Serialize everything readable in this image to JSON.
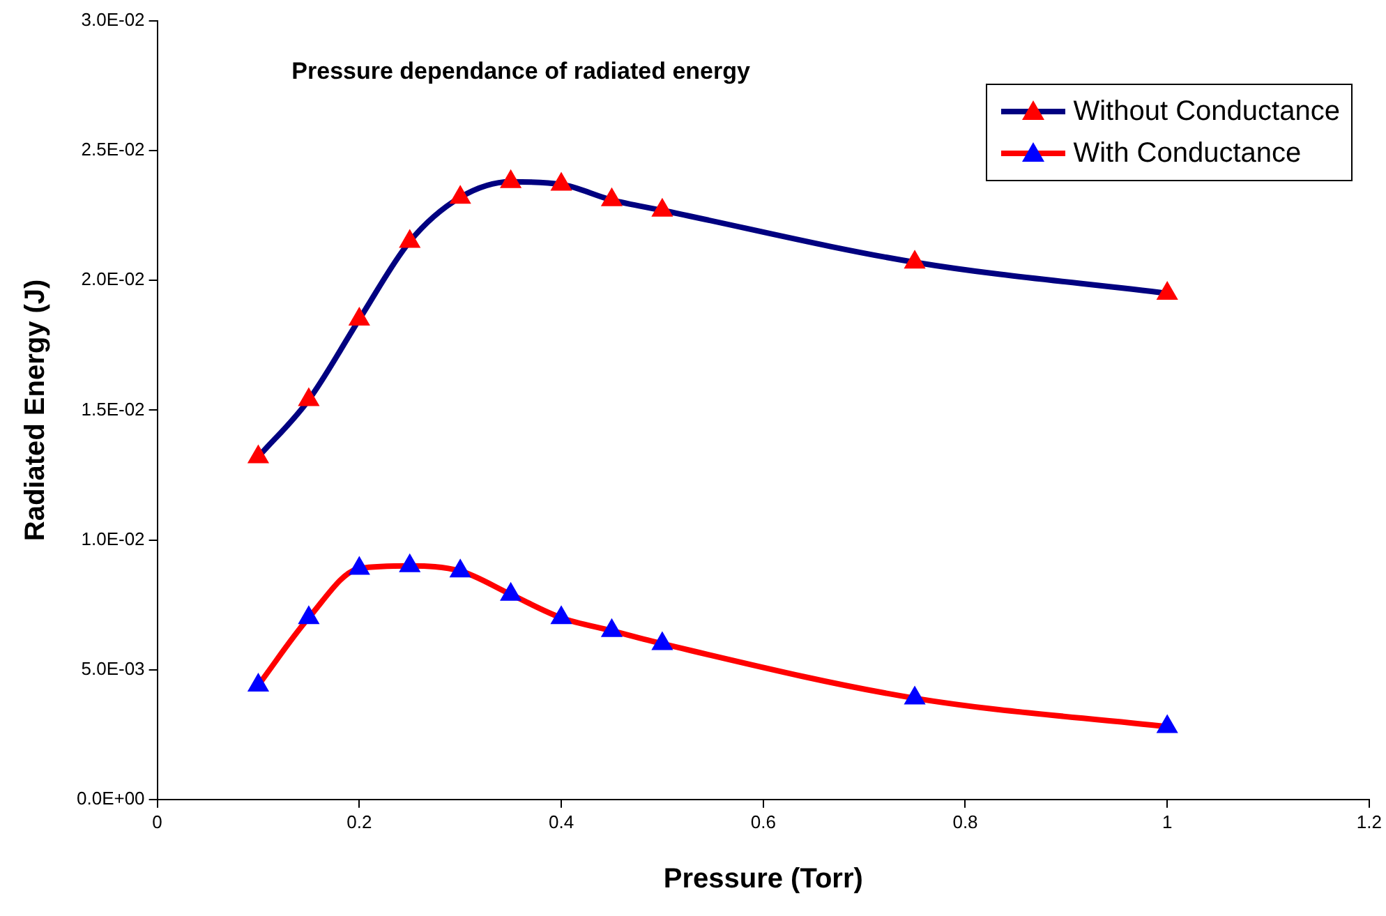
{
  "chart_data": {
    "type": "line",
    "title": "Pressure dependance of radiated energy",
    "xlabel": "Pressure (Torr)",
    "ylabel": "Radiated Energy (J)",
    "x": [
      0.1,
      0.15,
      0.2,
      0.25,
      0.3,
      0.35,
      0.4,
      0.45,
      0.5,
      0.75,
      1
    ],
    "series": [
      {
        "name": "Without Conductance",
        "color": "#000080",
        "colors": [
          "#ff0000",
          "#ff0000",
          "#ff0000",
          "#ff0000",
          "#ff0000",
          "#ff0000",
          "#ff0000",
          "#ff0000",
          "#ff0000",
          "#ff0000",
          "#ff0000"
        ],
        "values": [
          0.0132,
          0.0154,
          0.0185,
          0.0215,
          0.0232,
          0.0238,
          0.0237,
          0.0231,
          0.0227,
          0.0207,
          0.0195
        ]
      },
      {
        "name": "With Conductance",
        "color": "#ff0000",
        "colors": [
          "#0000ff",
          "#0000ff",
          "#0000ff",
          "#0000ff",
          "#0000ff",
          "#0000ff",
          "#0000ff",
          "#0000ff",
          "#0000ff",
          "#0000ff",
          "#0000ff"
        ],
        "values": [
          0.0044,
          0.007,
          0.0089,
          0.009,
          0.0088,
          0.0079,
          0.007,
          0.0065,
          0.006,
          0.0039,
          0.0028
        ]
      }
    ],
    "xlim": [
      0,
      1.2
    ],
    "xticks": [
      0,
      0.2,
      0.4,
      0.6,
      0.8,
      1,
      1.2
    ],
    "ylim": [
      0,
      0.03
    ],
    "yticks": [
      {
        "value": 0,
        "label": "0.0E+00"
      },
      {
        "value": 0.005,
        "label": "5.0E-03"
      },
      {
        "value": 0.01,
        "label": "1.0E-02"
      },
      {
        "value": 0.015,
        "label": "1.5E-02"
      },
      {
        "value": 0.02,
        "label": "2.0E-02"
      },
      {
        "value": 0.025,
        "label": "2.5E-02"
      },
      {
        "value": 0.03,
        "label": "3.0E-02"
      }
    ],
    "grid": false,
    "legend": "top right",
    "marker": "triangle",
    "line_style": "solid"
  }
}
